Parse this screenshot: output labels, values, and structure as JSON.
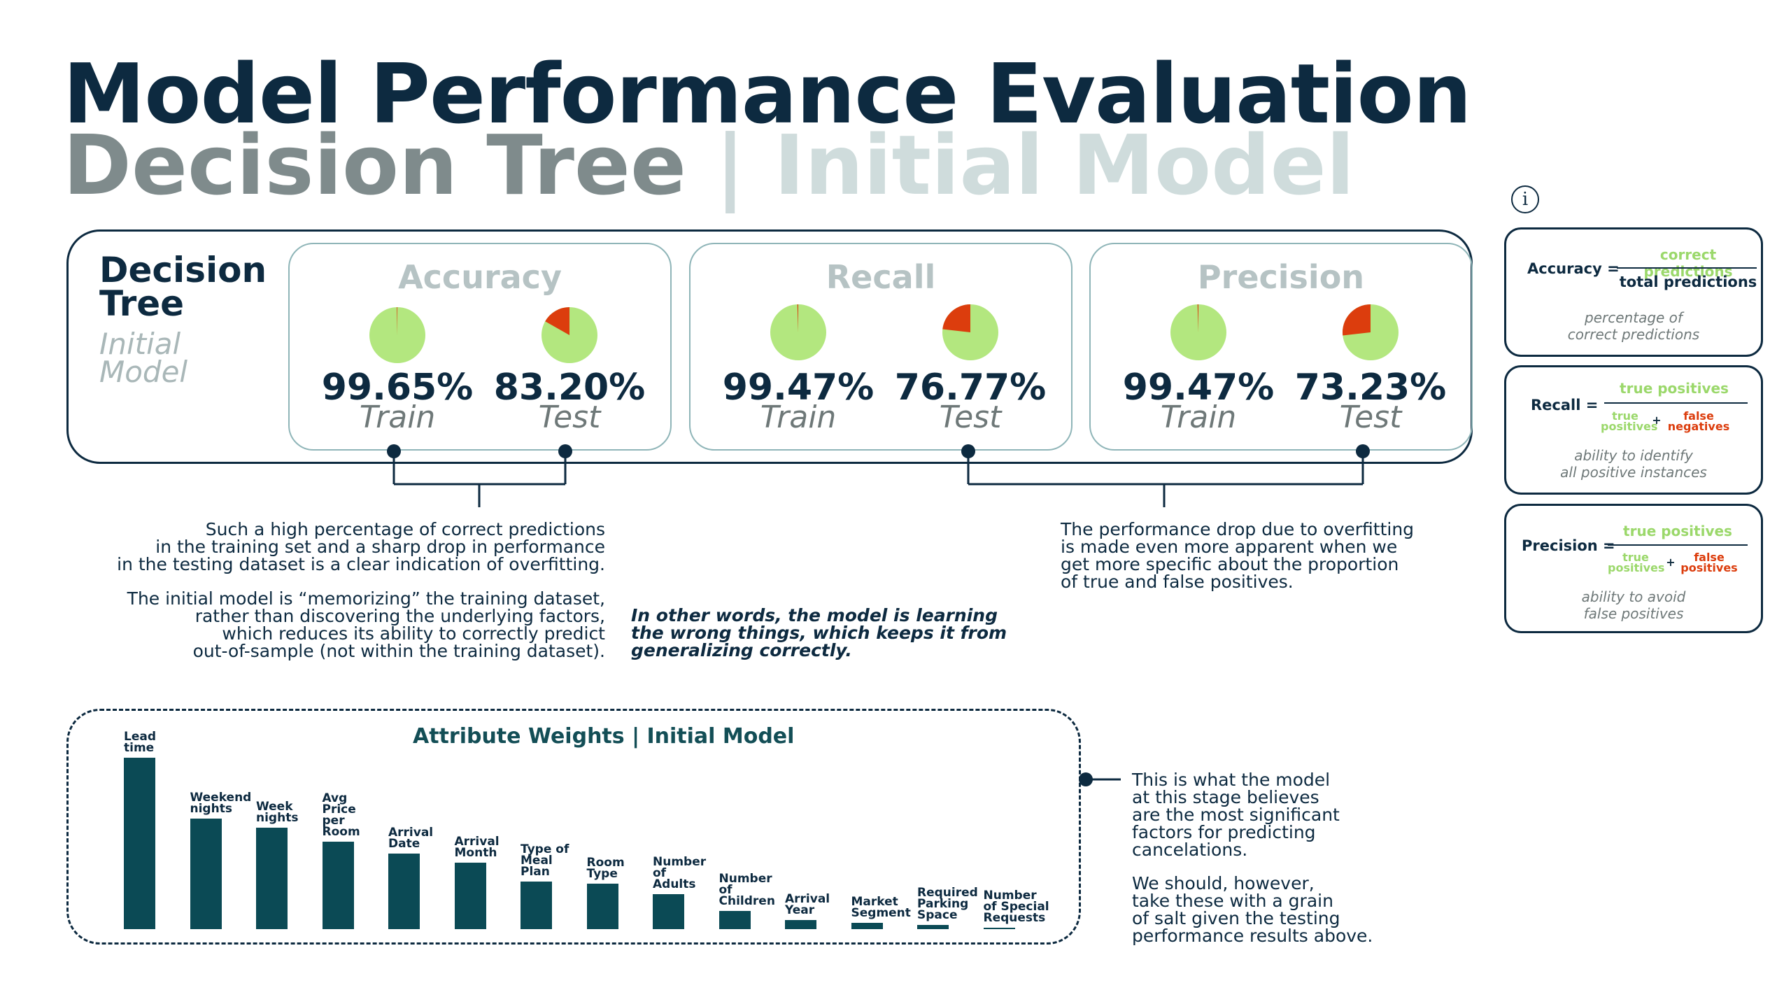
{
  "title": {
    "line1": "Model Performance Evaluation",
    "line2_a": "Decision Tree",
    "line2_sep": "|",
    "line2_b": "Initial Model"
  },
  "model": {
    "name_line1": "Decision",
    "name_line2": "Tree",
    "sub_line1": "Initial",
    "sub_line2": "Model"
  },
  "metrics": [
    {
      "title": "Accuracy",
      "train_value": "99.65%",
      "train_label": "Train",
      "test_value": "83.20%",
      "test_label": "Test",
      "train_fraction": 0.9965,
      "test_fraction": 0.832
    },
    {
      "title": "Recall",
      "train_value": "99.47%",
      "train_label": "Train",
      "test_value": "76.77%",
      "test_label": "Test",
      "train_fraction": 0.9947,
      "test_fraction": 0.7677
    },
    {
      "title": "Precision",
      "train_value": "99.47%",
      "train_label": "Train",
      "test_value": "73.23%",
      "test_label": "Test",
      "train_fraction": 0.9947,
      "test_fraction": 0.7323
    }
  ],
  "colors": {
    "pie_green": "#b3e77f",
    "pie_red": "#dc3d0d",
    "dark": "#0d2a40",
    "bar": "#0b4a55"
  },
  "notes": {
    "left1": [
      "Such a high percentage of correct predictions",
      "in the training set and a sharp drop in performance",
      "in the testing dataset is a clear indication of overfitting."
    ],
    "left2": [
      "The initial model is “memorizing” the training dataset,",
      "rather than discovering the underlying factors,",
      "which reduces its ability to correctly predict",
      "out-of-sample (not within the training dataset)."
    ],
    "middle": [
      "In other words, the model is learning",
      "the wrong things, which keeps it from",
      "generalizing correctly."
    ],
    "right": [
      "The performance drop due to overfitting",
      "is made even more apparent when we",
      "get more specific about the proportion",
      "of true and false positives."
    ],
    "chart1": [
      "This is what the model",
      "at this stage believes",
      "are the most significant",
      "factors for predicting",
      "cancelations."
    ],
    "chart2": [
      "We should, however,",
      "take these with a grain",
      "of salt given the testing",
      "performance results above."
    ]
  },
  "formulas": {
    "info_icon": "i",
    "accuracy": {
      "name": "Accuracy =",
      "numerator": "correct predictions",
      "denominator": "total predictions",
      "desc1": "percentage of",
      "desc2": "correct predictions"
    },
    "recall": {
      "name": "Recall =",
      "numerator": "true positives",
      "den_left1": "true",
      "den_left2": "positives",
      "plus": "+",
      "den_right1": "false",
      "den_right2": "negatives",
      "desc1": "ability to identify",
      "desc2": "all positive instances"
    },
    "precision": {
      "name": "Precision =",
      "numerator": "true positives",
      "den_left1": "true",
      "den_left2": "positives",
      "plus": "+",
      "den_right1": "false",
      "den_right2": "positives",
      "desc1": "ability to avoid",
      "desc2": "false positives"
    }
  },
  "chart_data": {
    "type": "bar",
    "title": "Attribute Weights | Initial Model",
    "categories": [
      "Lead time",
      "Weekend nights",
      "Week nights",
      "Avg Price per Room",
      "Arrival Date",
      "Arrival Month",
      "Type of Meal Plan",
      "Room Type",
      "Number of Adults",
      "Number of Children",
      "Arrival Year",
      "Market Segment",
      "Required Parking Space",
      "Number of Special Requests"
    ],
    "values": [
      245,
      158,
      145,
      125,
      108,
      95,
      68,
      65,
      50,
      26,
      13,
      9,
      6,
      2
    ],
    "xlabel": "",
    "ylabel": ""
  }
}
